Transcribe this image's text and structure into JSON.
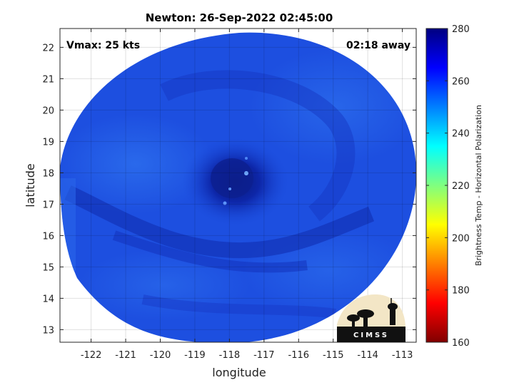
{
  "title": "Newton: 26-Sep-2022 02:45:00",
  "annotations": {
    "vmax": "Vmax: 25 kts",
    "away": "02:18 away"
  },
  "axes": {
    "xlabel": "longitude",
    "ylabel": "latitude",
    "xlim": [
      -122.9,
      -112.6
    ],
    "ylim": [
      12.6,
      22.6
    ],
    "xticks": [
      -122,
      -121,
      -120,
      -119,
      -118,
      -117,
      -116,
      -115,
      -114,
      -113
    ],
    "yticks": [
      13,
      14,
      15,
      16,
      17,
      18,
      19,
      20,
      21,
      22
    ],
    "grid": true
  },
  "colorbar": {
    "label": "Brightness Temp - Horizontal Polarization",
    "range": [
      160,
      280
    ],
    "ticks": [
      160,
      180,
      200,
      220,
      240,
      260,
      280
    ],
    "colormap": "jet"
  },
  "image": {
    "type": "microwave brightness temperature swath",
    "storm_center": {
      "lon": -117.6,
      "lat": 17.8
    },
    "dominant_color": "#1a4bdc"
  },
  "logo": {
    "text": "CIMSS"
  }
}
